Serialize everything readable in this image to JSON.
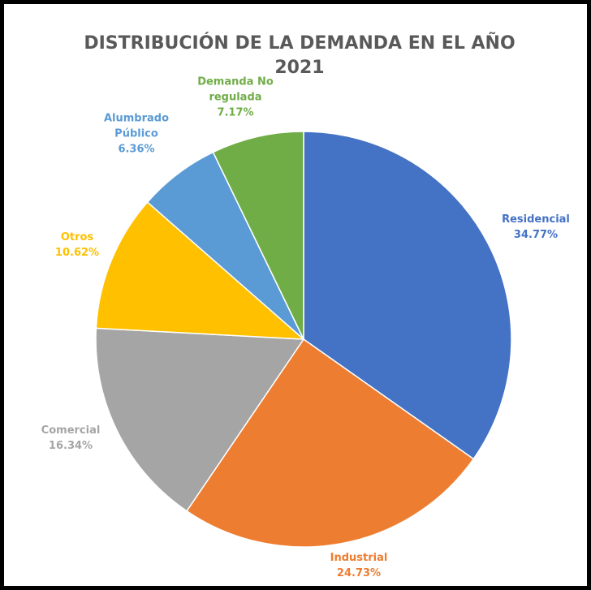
{
  "chart_data": {
    "type": "pie",
    "title": "DISTRIBUCIÓN DE LA DEMANDA EN EL AÑO 2021",
    "categories": [
      "Residencial",
      "Industrial",
      "Comercial",
      "Otros",
      "Alumbrado Público",
      "Demanda No regulada"
    ],
    "values": [
      34.77,
      24.73,
      16.34,
      10.62,
      6.36,
      7.17
    ],
    "value_labels": [
      "34.77%",
      "24.73%",
      "16.34%",
      "10.62%",
      "6.36%",
      "7.17%"
    ],
    "colors": [
      "#4472c4",
      "#ed7d31",
      "#a5a5a5",
      "#ffc000",
      "#5b9bd5",
      "#70ad47"
    ]
  }
}
